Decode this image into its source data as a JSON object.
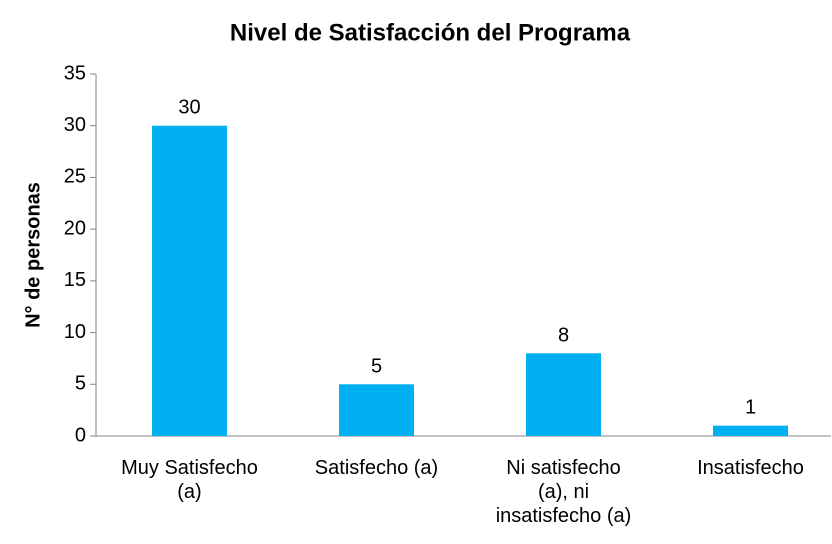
{
  "chart_data": {
    "type": "bar",
    "title": "Nivel de Satisfacción del Programa",
    "y_label": "N° de personas",
    "categories": [
      "Muy Satisfecho (a)",
      "Satisfecho (a)",
      "Ni satisfecho (a), ni insatisfecho (a)",
      "Insatisfecho"
    ],
    "values": [
      30,
      5,
      8,
      1
    ],
    "color": "#00b0f0",
    "ylim": [
      0,
      35
    ],
    "yticks": [
      0,
      5,
      10,
      15,
      20,
      25,
      30,
      35
    ],
    "grid": false
  }
}
